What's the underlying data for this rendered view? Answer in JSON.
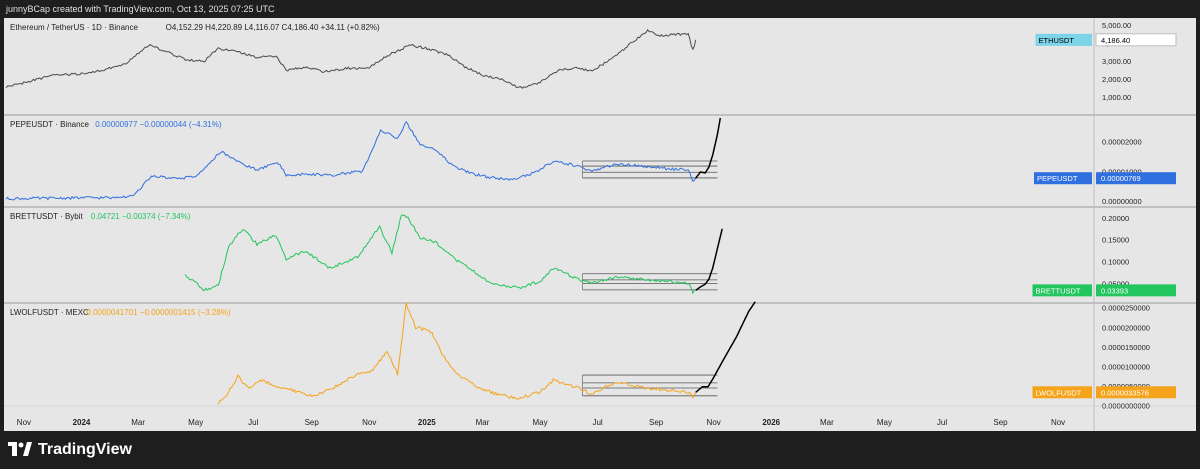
{
  "header": {
    "credit": "junnyBCap created with TradingView.com, Oct 13, 2025 07:25 UTC"
  },
  "brand": {
    "name": "TradingView"
  },
  "colors": {
    "background": "#e6e6e6",
    "eth": "#4a4a4a",
    "pepe": "#2f6fe0",
    "brett": "#22c55e",
    "lwolf": "#f5a31a",
    "projection": "#000000",
    "box": "#555555"
  },
  "x_axis": {
    "ticks": [
      {
        "label": "Nov",
        "date": "2023-11-01"
      },
      {
        "label": "2024",
        "date": "2024-01-01"
      },
      {
        "label": "Mar",
        "date": "2024-03-01"
      },
      {
        "label": "May",
        "date": "2024-05-01"
      },
      {
        "label": "Jul",
        "date": "2024-07-01"
      },
      {
        "label": "Sep",
        "date": "2024-09-01"
      },
      {
        "label": "Nov",
        "date": "2024-11-01"
      },
      {
        "label": "2025",
        "date": "2025-01-01"
      },
      {
        "label": "Mar",
        "date": "2025-03-01"
      },
      {
        "label": "May",
        "date": "2025-05-01"
      },
      {
        "label": "Jul",
        "date": "2025-07-01"
      },
      {
        "label": "Sep",
        "date": "2025-09-01"
      },
      {
        "label": "Nov",
        "date": "2025-11-01"
      },
      {
        "label": "2026",
        "date": "2026-01-01"
      },
      {
        "label": "Mar",
        "date": "2026-03-01"
      },
      {
        "label": "May",
        "date": "2026-05-01"
      },
      {
        "label": "Jul",
        "date": "2026-07-01"
      },
      {
        "label": "Sep",
        "date": "2026-09-01"
      },
      {
        "label": "Nov",
        "date": "2026-11-01"
      }
    ]
  },
  "chart_data": [
    {
      "type": "line",
      "title": "Ethereum / TetherUS · 1D · Binance",
      "ohlc_text": "O4,152.29 H4,220.89 L4,116.07 C4,186.40 +34.11 (+0.82%)",
      "symbol_badge": "ETHUSDT",
      "last_value_label": "4,186.40",
      "ylim": [
        0,
        5400
      ],
      "y_ticks": [
        {
          "label": "5,000.00",
          "value": 5000
        },
        {
          "label": "4,000.00",
          "value": 4000
        },
        {
          "label": "3,000.00",
          "value": 3000
        },
        {
          "label": "2,000.00",
          "value": 2000
        },
        {
          "label": "1,000.00",
          "value": 1000
        }
      ],
      "series": [
        {
          "x": [
            "2023-10-13",
            "2023-11-01",
            "2023-12-01",
            "2024-01-01",
            "2024-01-20",
            "2024-02-15",
            "2024-03-12",
            "2024-04-01",
            "2024-04-20",
            "2024-05-10",
            "2024-05-25",
            "2024-06-15",
            "2024-07-05",
            "2024-07-25",
            "2024-08-05",
            "2024-08-25",
            "2024-09-15",
            "2024-10-10",
            "2024-10-30",
            "2024-11-20",
            "2024-12-15",
            "2025-01-05",
            "2025-01-25",
            "2025-02-10",
            "2025-03-01",
            "2025-03-20",
            "2025-04-09",
            "2025-05-01",
            "2025-05-20",
            "2025-06-10",
            "2025-06-25",
            "2025-07-15",
            "2025-08-01",
            "2025-08-23",
            "2025-09-05",
            "2025-09-20",
            "2025-10-05",
            "2025-10-10",
            "2025-10-13"
          ],
          "values": [
            1560,
            1800,
            2200,
            2300,
            2450,
            2800,
            3900,
            3500,
            3100,
            3000,
            3700,
            3500,
            3200,
            3300,
            2500,
            2650,
            2400,
            2600,
            2600,
            3300,
            3900,
            3650,
            3300,
            2700,
            2200,
            2000,
            1500,
            1800,
            2500,
            2600,
            2450,
            3100,
            3800,
            4700,
            4400,
            4500,
            4500,
            3600,
            4186
          ]
        }
      ]
    },
    {
      "type": "line",
      "title": "PEPEUSDT · Binance",
      "ohlc_text": "0.00000977 −0.00000044 (−4.31%)",
      "symbol_badge": "PEPEUSDT",
      "last_value_label": "0.00000769",
      "ylim": [
        -2e-06,
        2.9e-05
      ],
      "y_ticks": [
        {
          "label": "0.00002000",
          "value": 2e-05
        },
        {
          "label": "0.00001000",
          "value": 1e-05
        },
        {
          "label": "0.00000000",
          "value": 0
        }
      ],
      "series": [
        {
          "x": [
            "2023-10-13",
            "2024-02-01",
            "2024-02-25",
            "2024-03-15",
            "2024-04-10",
            "2024-05-01",
            "2024-05-28",
            "2024-06-20",
            "2024-07-05",
            "2024-07-28",
            "2024-08-05",
            "2024-08-25",
            "2024-09-20",
            "2024-10-25",
            "2024-11-13",
            "2024-12-01",
            "2024-12-10",
            "2024-12-25",
            "2025-01-10",
            "2025-01-28",
            "2025-02-15",
            "2025-03-10",
            "2025-04-05",
            "2025-05-01",
            "2025-05-15",
            "2025-06-10",
            "2025-06-25",
            "2025-07-20",
            "2025-08-20",
            "2025-09-15",
            "2025-10-05",
            "2025-10-10",
            "2025-10-13"
          ],
          "values": [
            8e-07,
            1.2e-06,
            1.6e-06,
            8.5e-06,
            7.5e-06,
            8.2e-06,
            1.68e-05,
            1.25e-05,
            1.05e-05,
            1.28e-05,
            8.5e-06,
            9e-06,
            8.7e-06,
            1.01e-05,
            2.4e-05,
            2.1e-05,
            2.68e-05,
            1.9e-05,
            1.75e-05,
            1.2e-05,
            9.5e-06,
            7.8e-06,
            7.2e-06,
            1.05e-05,
            1.35e-05,
            1.18e-05,
            9.8e-06,
            1.25e-05,
            1.18e-05,
            1.08e-05,
            1.05e-05,
            6.6e-06,
            7.7e-06
          ]
        },
        {
          "x": [
            "2025-10-13",
            "2025-10-18",
            "2025-10-23",
            "2025-10-27",
            "2025-10-31",
            "2025-11-05",
            "2025-11-08"
          ],
          "values": [
            7.7e-06,
            9.8e-06,
            9.5e-06,
            1.15e-05,
            1.55e-05,
            2.25e-05,
            2.8e-05
          ]
        }
      ],
      "range_box": {
        "x_start": "2025-06-15",
        "x_end": "2025-11-05",
        "levels": [
          7.8e-06,
          9.7e-06,
          1.18e-05,
          1.35e-05
        ]
      }
    },
    {
      "type": "line",
      "title": "BRETTUSDT · Bybit",
      "ohlc_text": "0.04721 −0.00374 (−7.34%)",
      "symbol_badge": "BRETTUSDT",
      "last_value_label": "0.03393",
      "ylim": [
        0.005,
        0.225
      ],
      "y_ticks": [
        {
          "label": "0.20000",
          "value": 0.2
        },
        {
          "label": "0.15000",
          "value": 0.15
        },
        {
          "label": "0.10000",
          "value": 0.1
        },
        {
          "label": "0.05000",
          "value": 0.05
        }
      ],
      "series": [
        {
          "x": [
            "2024-04-20",
            "2024-04-28",
            "2024-05-10",
            "2024-05-25",
            "2024-06-05",
            "2024-06-20",
            "2024-07-05",
            "2024-07-25",
            "2024-08-05",
            "2024-08-25",
            "2024-09-20",
            "2024-10-20",
            "2024-11-12",
            "2024-11-25",
            "2024-12-05",
            "2024-12-12",
            "2024-12-25",
            "2025-01-10",
            "2025-01-28",
            "2025-02-15",
            "2025-03-10",
            "2025-04-09",
            "2025-05-01",
            "2025-05-15",
            "2025-06-10",
            "2025-06-25",
            "2025-07-20",
            "2025-08-20",
            "2025-09-15",
            "2025-10-05",
            "2025-10-10",
            "2025-10-13"
          ],
          "values": [
            0.07,
            0.055,
            0.035,
            0.045,
            0.135,
            0.175,
            0.14,
            0.16,
            0.105,
            0.125,
            0.085,
            0.11,
            0.18,
            0.12,
            0.205,
            0.2,
            0.155,
            0.145,
            0.11,
            0.085,
            0.05,
            0.04,
            0.055,
            0.085,
            0.06,
            0.05,
            0.065,
            0.058,
            0.055,
            0.05,
            0.03,
            0.034
          ]
        },
        {
          "x": [
            "2025-10-13",
            "2025-10-18",
            "2025-10-23",
            "2025-10-27",
            "2025-10-31",
            "2025-11-05",
            "2025-11-10"
          ],
          "values": [
            0.034,
            0.042,
            0.048,
            0.06,
            0.085,
            0.13,
            0.175
          ]
        }
      ],
      "range_box": {
        "x_start": "2025-06-15",
        "x_end": "2025-11-05",
        "levels": [
          0.035,
          0.05,
          0.058,
          0.072
        ]
      }
    },
    {
      "type": "line",
      "title": "LWOLFUSDT · MEXC",
      "ohlc_text": "0.0000041701 −0.0000001415 (−3.28%)",
      "symbol_badge": "LWOLFUSDT",
      "last_value_label": "0.0000033576",
      "ylim": [
        -1e-07,
        2.62e-05
      ],
      "y_ticks": [
        {
          "label": "0.0000250000",
          "value": 2.5e-05
        },
        {
          "label": "0.0000200000",
          "value": 2e-05
        },
        {
          "label": "0.0000150000",
          "value": 1.5e-05
        },
        {
          "label": "0.0000100000",
          "value": 1e-05
        },
        {
          "label": "0.0000050000",
          "value": 5e-06
        },
        {
          "label": "0.0000000000",
          "value": 0
        }
      ],
      "series": [
        {
          "x": [
            "2024-05-25",
            "2024-06-05",
            "2024-06-15",
            "2024-06-25",
            "2024-07-10",
            "2024-07-25",
            "2024-08-10",
            "2024-09-01",
            "2024-09-20",
            "2024-10-15",
            "2024-11-05",
            "2024-11-20",
            "2024-12-01",
            "2024-12-10",
            "2024-12-20",
            "2025-01-05",
            "2025-01-20",
            "2025-02-05",
            "2025-02-25",
            "2025-03-15",
            "2025-04-09",
            "2025-05-01",
            "2025-05-15",
            "2025-06-10",
            "2025-06-25",
            "2025-07-20",
            "2025-08-20",
            "2025-09-15",
            "2025-10-05",
            "2025-10-10",
            "2025-10-13"
          ],
          "values": [
            5e-07,
            3.5e-06,
            7.5e-06,
            4.5e-06,
            6.5e-06,
            5e-06,
            4e-06,
            2.5e-06,
            4e-06,
            7.5e-06,
            9e-06,
            1.4e-05,
            8e-06,
            2.6e-05,
            2e-05,
            1.9e-05,
            1.2e-05,
            7.5e-06,
            4.5e-06,
            3e-06,
            1.8e-06,
            3.5e-06,
            6.5e-06,
            4.5e-06,
            3e-06,
            6e-06,
            4.5e-06,
            4e-06,
            3.5e-06,
            2e-06,
            3.4e-06
          ]
        },
        {
          "x": [
            "2025-10-13",
            "2025-10-20",
            "2025-10-26",
            "2025-11-01",
            "2025-11-12",
            "2025-11-25",
            "2025-12-08",
            "2025-12-15"
          ],
          "values": [
            3.4e-06,
            4.8e-06,
            4.8e-06,
            7.2e-06,
            1.2e-05,
            1.75e-05,
            2.4e-05,
            2.65e-05
          ]
        }
      ],
      "range_box": {
        "x_start": "2025-06-15",
        "x_end": "2025-11-05",
        "levels": [
          2.5e-06,
          4.5e-06,
          5.8e-06,
          7.8e-06
        ]
      }
    }
  ]
}
